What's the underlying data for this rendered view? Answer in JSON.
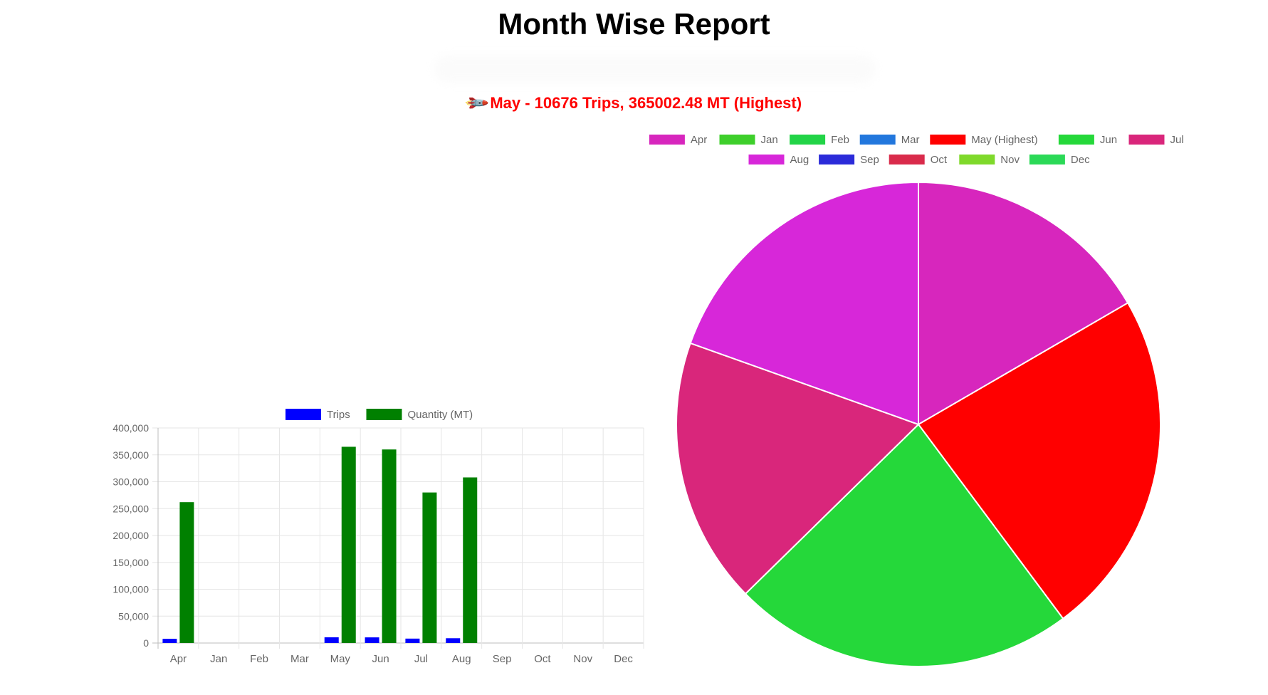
{
  "title": "Month Wise Report",
  "highlight": {
    "icon": "rocket-icon",
    "text": "May - 10676 Trips, 365002.48 MT (Highest)"
  },
  "chart_data": [
    {
      "type": "bar",
      "categories": [
        "Apr",
        "Jan",
        "Feb",
        "Mar",
        "May",
        "Jun",
        "Jul",
        "Aug",
        "Sep",
        "Oct",
        "Nov",
        "Dec"
      ],
      "series": [
        {
          "name": "Trips",
          "color": "#0000ff",
          "values": [
            7800,
            0,
            0,
            0,
            10676,
            10500,
            8200,
            8900,
            0,
            0,
            0,
            0
          ]
        },
        {
          "name": "Quantity (MT)",
          "color": "#008000",
          "values": [
            262000,
            0,
            0,
            0,
            365002.48,
            360000,
            280000,
            308000,
            0,
            0,
            0,
            0
          ]
        }
      ],
      "ylim": [
        0,
        400000
      ],
      "yticks": [
        "0",
        "50,000",
        "100,000",
        "150,000",
        "200,000",
        "250,000",
        "300,000",
        "350,000",
        "400,000"
      ],
      "grid": true,
      "legend": "top"
    },
    {
      "type": "pie",
      "labels": [
        "Apr",
        "Jan",
        "Feb",
        "Mar",
        "May (Highest)",
        "Jun",
        "Jul",
        "Aug",
        "Sep",
        "Oct",
        "Nov",
        "Dec"
      ],
      "colors": [
        "#d726bd",
        "#3ecf2b",
        "#22d447",
        "#2277dd",
        "#ff0000",
        "#25d83a",
        "#d9267b",
        "#d727d9",
        "#2b2bd9",
        "#d92b4b",
        "#7fd92b",
        "#2bd957"
      ],
      "values": [
        262000,
        0,
        0,
        0,
        365002.48,
        360000,
        280000,
        308000,
        0,
        0,
        0,
        0
      ],
      "legend": "top"
    }
  ]
}
